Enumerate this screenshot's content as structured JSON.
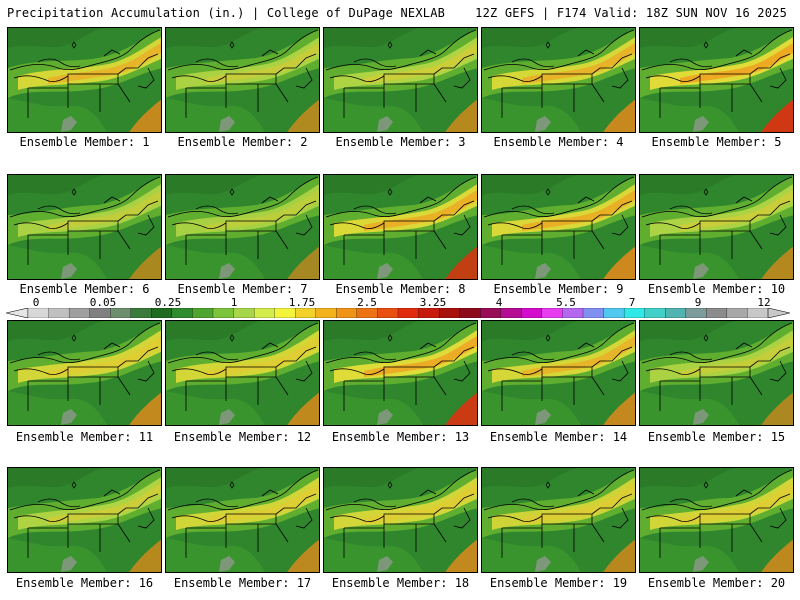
{
  "header": {
    "left": "Precipitation Accumulation (in.) | College of DuPage NEXLAB",
    "right": "12Z GEFS | F174 Valid: 18Z SUN NOV 16 2025"
  },
  "caption_prefix": "Ensemble Member:",
  "members": [
    {
      "number": "1",
      "intensity": 0.62
    },
    {
      "number": "2",
      "intensity": 0.45
    },
    {
      "number": "3",
      "intensity": 0.5
    },
    {
      "number": "4",
      "intensity": 0.65
    },
    {
      "number": "5",
      "intensity": 0.85
    },
    {
      "number": "6",
      "intensity": 0.4
    },
    {
      "number": "7",
      "intensity": 0.35
    },
    {
      "number": "8",
      "intensity": 0.72
    },
    {
      "number": "9",
      "intensity": 0.7
    },
    {
      "number": "10",
      "intensity": 0.48
    },
    {
      "number": "11",
      "intensity": 0.6
    },
    {
      "number": "12",
      "intensity": 0.58
    },
    {
      "number": "13",
      "intensity": 0.8
    },
    {
      "number": "14",
      "intensity": 0.62
    },
    {
      "number": "15",
      "intensity": 0.42
    },
    {
      "number": "16",
      "intensity": 0.5
    },
    {
      "number": "17",
      "intensity": 0.55
    },
    {
      "number": "18",
      "intensity": 0.6
    },
    {
      "number": "19",
      "intensity": 0.52
    },
    {
      "number": "20",
      "intensity": 0.56
    }
  ],
  "colorbar": {
    "tick_labels": [
      "0",
      "0.05",
      "0.25",
      "1",
      "1.75",
      "2.5",
      "3.25",
      "4",
      "5.5",
      "7",
      "9",
      "12"
    ],
    "colors": [
      "#d8d8d8",
      "#c0c0c0",
      "#a0a0a0",
      "#808080",
      "#6e8f6e",
      "#3a7a3a",
      "#1f6b1f",
      "#2e8b2e",
      "#4fa62e",
      "#7cc43a",
      "#a8d64a",
      "#d4ec4c",
      "#f4f43c",
      "#f2d22a",
      "#f2b21e",
      "#ef9418",
      "#ec7214",
      "#e84f10",
      "#e02c0c",
      "#c81a0c",
      "#a8100c",
      "#8c0c1c",
      "#980c58",
      "#b40c94",
      "#d40ccc",
      "#e83cf0",
      "#b468f0",
      "#8090f0",
      "#50c8f0",
      "#30e8e8",
      "#40d0c8",
      "#50b4b0",
      "#7c9c9c",
      "#8c8c8c",
      "#a8a8a8",
      "#c8c8c8"
    ]
  }
}
